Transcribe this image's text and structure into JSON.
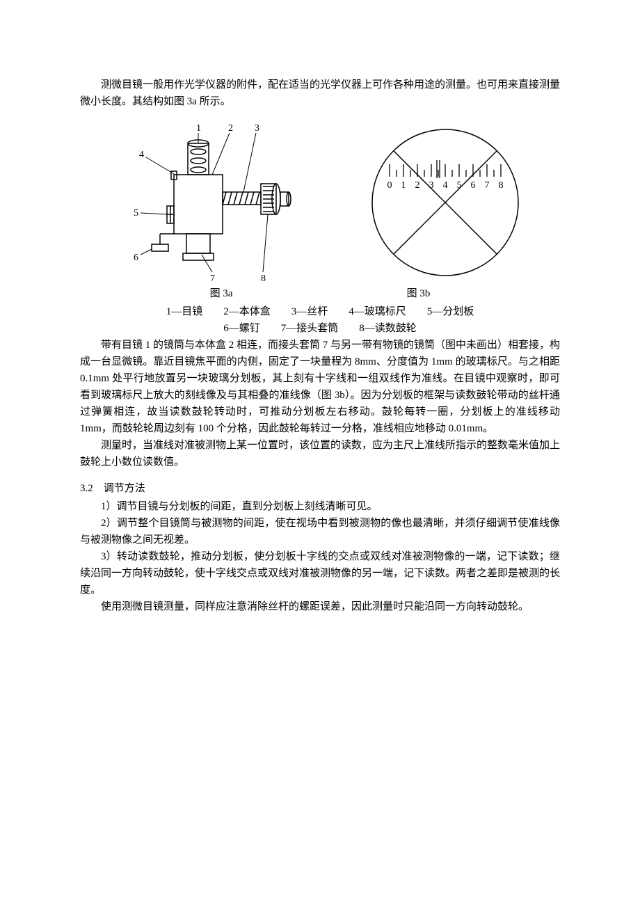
{
  "intro": "测微目镜一般用作光学仪器的附件，配在适当的光学仪器上可作各种用途的测量。也可用来直接测量微小长度。其结构如图 3a 所示。",
  "figure3a": {
    "label": "图 3a",
    "callout_numbers": [
      "1",
      "2",
      "3",
      "4",
      "5",
      "6",
      "7",
      "8"
    ],
    "stroke": "#000000",
    "stroke_width": 1.5,
    "callout_stroke_width": 1
  },
  "figure3b": {
    "label": "图 3b",
    "scale_numbers": [
      "0",
      "1",
      "2",
      "3",
      "4",
      "5",
      "6",
      "7",
      "8"
    ],
    "pointer_x": 3.5,
    "double_line_gap": 4,
    "stroke": "#000000",
    "stroke_width": 1.5,
    "tick_height_major": 18,
    "tick_height_minor": 10,
    "num_fontsize": 14
  },
  "parts_legend": {
    "line1": "1—目镜　　2—本体盒　　3—丝杆　　4—玻璃标尺　　5—分划板",
    "line2": "6—螺钉　　7—接头套筒　　8—读数鼓轮"
  },
  "para1": "带有目镜 1 的镜筒与本体盒 2 相连，而接头套筒 7 与另一带有物镜的镜筒（图中未画出）相套接，构成一台显微镜。靠近目镜焦平面的内侧，固定了一块量程为 8mm、分度值为 1mm 的玻璃标尺。与之相距 0.1mm 处平行地放置另一块玻璃分划板，其上刻有十字线和一组双线作为准线。在目镜中观察时，即可看到玻璃标尺上放大的刻线像及与其相叠的准线像（图 3b）。因为分划板的框架与读数鼓轮带动的丝杆通过弹簧相连，故当读数鼓轮转动时，可推动分划板左右移动。鼓轮每转一圈，分划板上的准线移动 1mm，而鼓轮轮周边刻有 100 个分格，因此鼓轮每转过一分格，准线相应地移动 0.01mm。",
  "para2": "测量时，当准线对准被测物上某一位置时，该位置的读数，应为主尺上准线所指示的整数毫米值加上鼓轮上小数位读数值。",
  "section32_head": "3.2　调节方法",
  "step1": "1）调节目镜与分划板的间距，直到分划板上刻线清晰可见。",
  "step2": "2）调节整个目镜筒与被测物的间距，使在视场中看到被测物的像也最清晰，并须仔细调节使准线像与被测物像之间无视差。",
  "step3": "3）转动读数鼓轮，推动分划板，使分划板十字线的交点或双线对准被测物像的一端，记下读数；继续沿同一方向转动鼓轮，使十字线交点或双线对准被测物像的另一端，记下读数。两者之差即是被测的长度。",
  "note": "使用测微目镜测量，同样应注意消除丝杆的螺距误差，因此测量时只能沿同一方向转动鼓轮。"
}
